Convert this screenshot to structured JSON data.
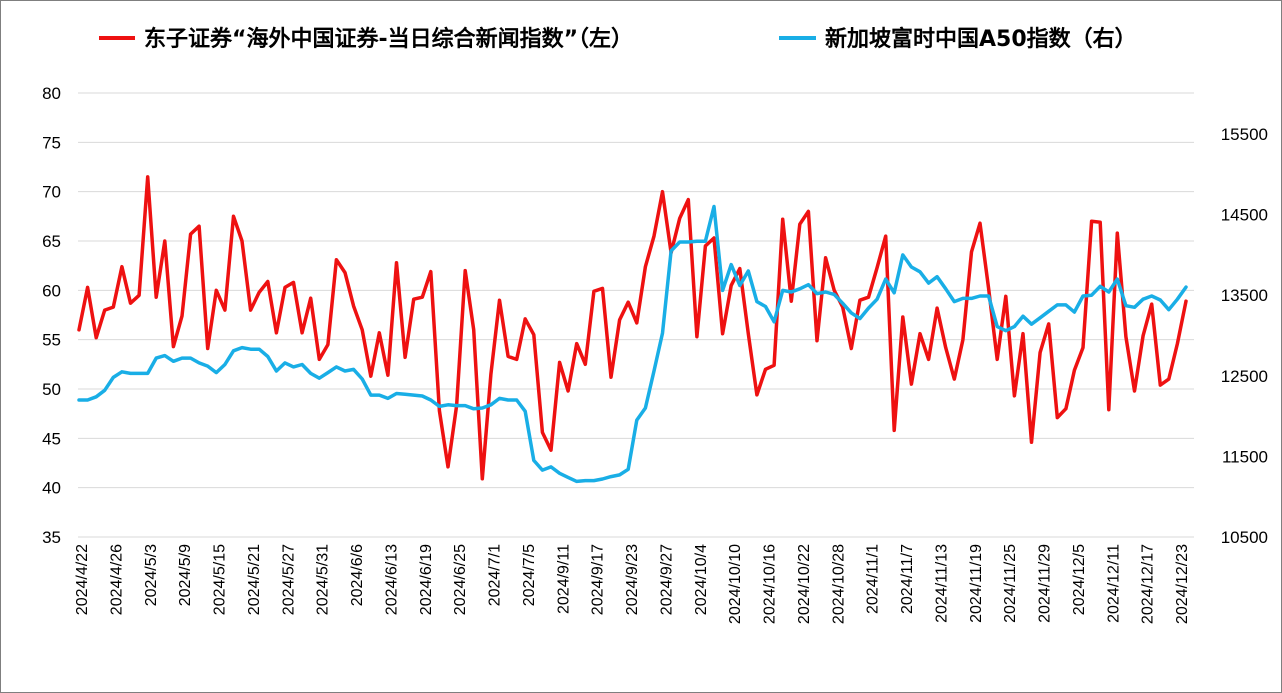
{
  "chart_data": {
    "type": "line",
    "title": "",
    "legend": {
      "placement": "top-center",
      "entries": [
        {
          "label": "东子证券“海外中国证券-当日综合新闻指数”（左）",
          "color": "#ee1111"
        },
        {
          "label": "新加坡富时中国A50指数（右）",
          "color": "#19aee6"
        }
      ]
    },
    "grid": true,
    "y_left": {
      "min": 35,
      "max": 80,
      "ticks": [
        "35",
        "40",
        "45",
        "50",
        "55",
        "60",
        "65",
        "70",
        "75",
        "80"
      ]
    },
    "y_right": {
      "min": 10500,
      "max": 15500,
      "ticks": [
        "10500",
        "11500",
        "12500",
        "13500",
        "14500",
        "15500"
      ]
    },
    "x_labels": [
      "2024/4/22",
      "2024/4/26",
      "2024/5/3",
      "2024/5/9",
      "2024/5/15",
      "2024/5/21",
      "2024/5/27",
      "2024/5/31",
      "2024/6/6",
      "2024/6/13",
      "2024/6/19",
      "2024/6/25",
      "2024/7/1",
      "2024/7/5",
      "2024/9/11",
      "2024/9/17",
      "2024/9/23",
      "2024/9/27",
      "2024/10/4",
      "2024/10/10",
      "2024/10/16",
      "2024/10/22",
      "2024/10/28",
      "2024/11/1",
      "2024/11/7",
      "2024/11/13",
      "2024/11/19",
      "2024/11/25",
      "2024/11/29",
      "2024/12/5",
      "2024/12/11",
      "2024/12/17",
      "2024/12/23"
    ],
    "series": [
      {
        "name": "东子证券“海外中国证券-当日综合新闻指数”（左）",
        "color": "#ee1111",
        "axis": "left",
        "values": [
          56,
          60.3,
          55.2,
          58,
          58.3,
          62.4,
          58.7,
          59.5,
          71.5,
          59.3,
          65,
          54.3,
          57.4,
          65.7,
          66.5,
          54.1,
          60,
          58,
          67.5,
          65,
          58,
          59.8,
          60.9,
          55.7,
          60.3,
          60.8,
          55.7,
          59.2,
          53,
          54.5,
          63.1,
          61.8,
          58.4,
          56,
          51.3,
          55.7,
          51.4,
          62.8,
          53.2,
          59.1,
          59.3,
          61.9,
          47.8,
          42.1,
          48.3,
          62,
          56,
          40.9,
          51.5,
          59,
          53.3,
          53,
          57.1,
          55.5,
          45.6,
          43.8,
          52.7,
          49.8,
          54.6,
          52.5,
          59.9,
          60.2,
          51.2,
          57,
          58.8,
          56.7,
          62.4,
          65.5,
          70,
          63.8,
          67.3,
          69.2,
          55.3,
          64.5,
          65.3,
          55.6,
          60.5,
          62.2,
          55.6,
          49.4,
          52,
          52.4,
          67.2,
          58.9,
          66.7,
          68,
          54.9,
          63.3,
          60,
          58.3,
          54.1,
          59,
          59.3,
          62.3,
          65.5,
          45.8,
          57.3,
          50.5,
          55.6,
          53,
          58.2,
          54.2,
          51,
          55,
          63.9,
          66.8,
          60.2,
          53,
          59.4,
          49.3,
          55.6,
          44.6,
          53.7,
          56.6,
          47.1,
          48,
          51.9,
          54.2,
          67,
          66.9,
          47.9,
          65.8,
          55.3,
          49.8,
          55.4,
          58.6,
          50.4,
          51,
          54.6,
          58.9
        ]
      },
      {
        "name": "新加坡富时中国A50指数（右）",
        "color": "#19aee6",
        "axis": "right",
        "values": [
          12200,
          12200,
          12240,
          12320,
          12480,
          12550,
          12530,
          12530,
          12530,
          12720,
          12750,
          12680,
          12720,
          12720,
          12660,
          12620,
          12540,
          12640,
          12810,
          12850,
          12830,
          12830,
          12740,
          12560,
          12660,
          12610,
          12640,
          12530,
          12470,
          12540,
          12610,
          12560,
          12580,
          12460,
          12260,
          12260,
          12220,
          12280,
          12270,
          12260,
          12250,
          12200,
          12120,
          12140,
          12130,
          12130,
          12090,
          12100,
          12140,
          12220,
          12200,
          12200,
          12060,
          11450,
          11330,
          11370,
          11290,
          11240,
          11190,
          11200,
          11200,
          11220,
          11250,
          11270,
          11340,
          11950,
          12100,
          12560,
          13030,
          14050,
          14160,
          14160,
          14170,
          14170,
          14600,
          13560,
          13880,
          13620,
          13800,
          13420,
          13360,
          13170,
          13560,
          13540,
          13580,
          13630,
          13520,
          13540,
          13510,
          13400,
          13280,
          13210,
          13340,
          13450,
          13700,
          13530,
          14000,
          13850,
          13790,
          13650,
          13730,
          13580,
          13420,
          13460,
          13460,
          13490,
          13490,
          13110,
          13060,
          13110,
          13240,
          13140,
          13220,
          13300,
          13380,
          13380,
          13290,
          13490,
          13500,
          13610,
          13540,
          13700,
          13370,
          13350,
          13450,
          13490,
          13440,
          13320,
          13450,
          13600
        ]
      }
    ]
  }
}
